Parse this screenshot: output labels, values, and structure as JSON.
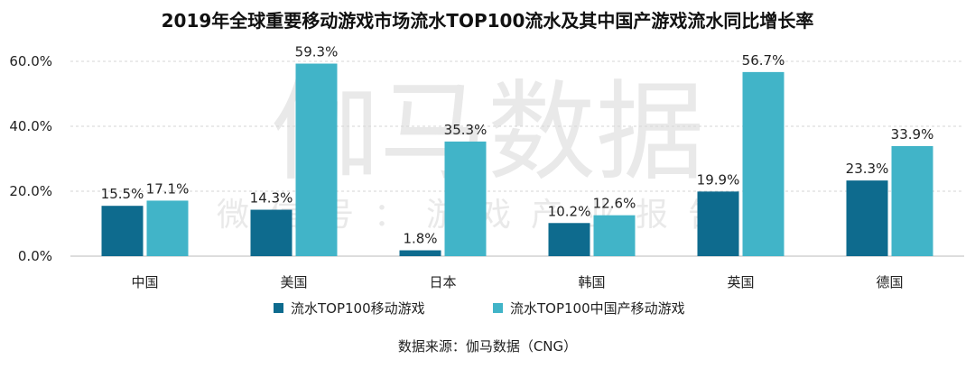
{
  "watermark": {
    "line1": "伽马数据",
    "line2": "微信号：游戏产业报告"
  },
  "chart_data": {
    "type": "bar",
    "title": "2019年全球重要移动游戏市场流水TOP100流水及其中国产游戏流水同比增长率",
    "categories": [
      "中国",
      "美国",
      "日本",
      "韩国",
      "英国",
      "德国"
    ],
    "ylim": [
      0,
      60
    ],
    "yticks": [
      "0.0%",
      "20.0%",
      "40.0%",
      "60.0%"
    ],
    "ytick_values": [
      0,
      20,
      40,
      60
    ],
    "grid": true,
    "legend_position": "bottom",
    "series": [
      {
        "name": "流水TOP100移动游戏",
        "color": "#0e6b8e",
        "values": [
          15.5,
          14.3,
          1.8,
          10.2,
          19.9,
          23.3
        ],
        "labels": [
          "15.5%",
          "14.3%",
          "1.8%",
          "10.2%",
          "19.9%",
          "23.3%"
        ]
      },
      {
        "name": "流水TOP100中国产移动游戏",
        "color": "#41b4c8",
        "values": [
          17.1,
          59.3,
          35.3,
          12.6,
          56.7,
          33.9
        ],
        "labels": [
          "17.1%",
          "59.3%",
          "35.3%",
          "12.6%",
          "56.7%",
          "33.9%"
        ]
      }
    ]
  },
  "source": "数据来源：伽马数据（CNG）"
}
